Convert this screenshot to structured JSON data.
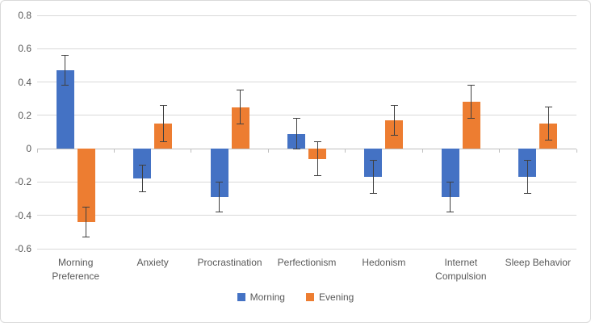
{
  "chart_data": {
    "type": "bar",
    "title": "",
    "xlabel": "",
    "ylabel": "",
    "ylim": [
      -0.6,
      0.8
    ],
    "ytick_step": 0.2,
    "yticks": [
      "0.8",
      "0.6",
      "0.4",
      "0.2",
      "0",
      "-0.2",
      "-0.4",
      "-0.6"
    ],
    "ytick_values": [
      0.8,
      0.6,
      0.4,
      0.2,
      0,
      -0.2,
      -0.4,
      -0.6
    ],
    "grid": true,
    "legend_position": "bottom",
    "categories": [
      "Morning Preference",
      "Anxiety",
      "Procrastination",
      "Perfectionism",
      "Hedonism",
      "Internet Compulsion",
      "Sleep Behavior"
    ],
    "series": [
      {
        "name": "Morning",
        "color": "#4472c4",
        "values": [
          0.47,
          -0.18,
          -0.29,
          0.09,
          -0.17,
          -0.29,
          -0.17
        ],
        "errors": [
          0.09,
          0.08,
          0.09,
          0.09,
          0.1,
          0.09,
          0.1
        ]
      },
      {
        "name": "Evening",
        "color": "#ed7d31",
        "values": [
          -0.44,
          0.15,
          0.25,
          -0.06,
          0.17,
          0.28,
          0.15
        ],
        "errors": [
          0.09,
          0.11,
          0.1,
          0.1,
          0.09,
          0.1,
          0.1
        ]
      }
    ],
    "colors": {
      "gridline": "#d9d9d9",
      "zero_axis": "#bfbfbf",
      "error_bar": "#404040",
      "text": "#595959",
      "frame_border": "#d9d9d9",
      "background": "#ffffff"
    }
  }
}
